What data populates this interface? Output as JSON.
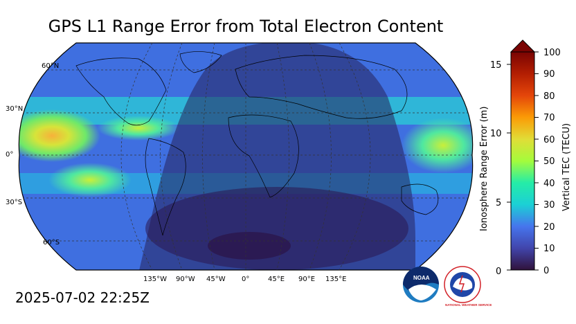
{
  "title": "GPS L1 Range Error from Total Electron Content",
  "timestamp": "2025-07-02 22:25Z",
  "map": {
    "lat_labels": [
      "60°N",
      "30°N",
      "0°",
      "30°S",
      "60°S"
    ],
    "lon_labels": [
      "135°W",
      "90°W",
      "45°W",
      "0°",
      "45°E",
      "90°E",
      "135°E"
    ]
  },
  "colorbar": {
    "left_axis_title": "Ionosphere Range Error (m)",
    "right_axis_title": "Vertical TEC (TECU)",
    "left_ticks": [
      "15",
      "10",
      "5",
      "0"
    ],
    "right_ticks": [
      "100",
      "90",
      "80",
      "70",
      "60",
      "50",
      "40",
      "30",
      "20",
      "10",
      "0"
    ]
  },
  "logos": {
    "noaa_text": "NOAA",
    "nws_text": "NATIONAL WEATHER SERVICE"
  }
}
